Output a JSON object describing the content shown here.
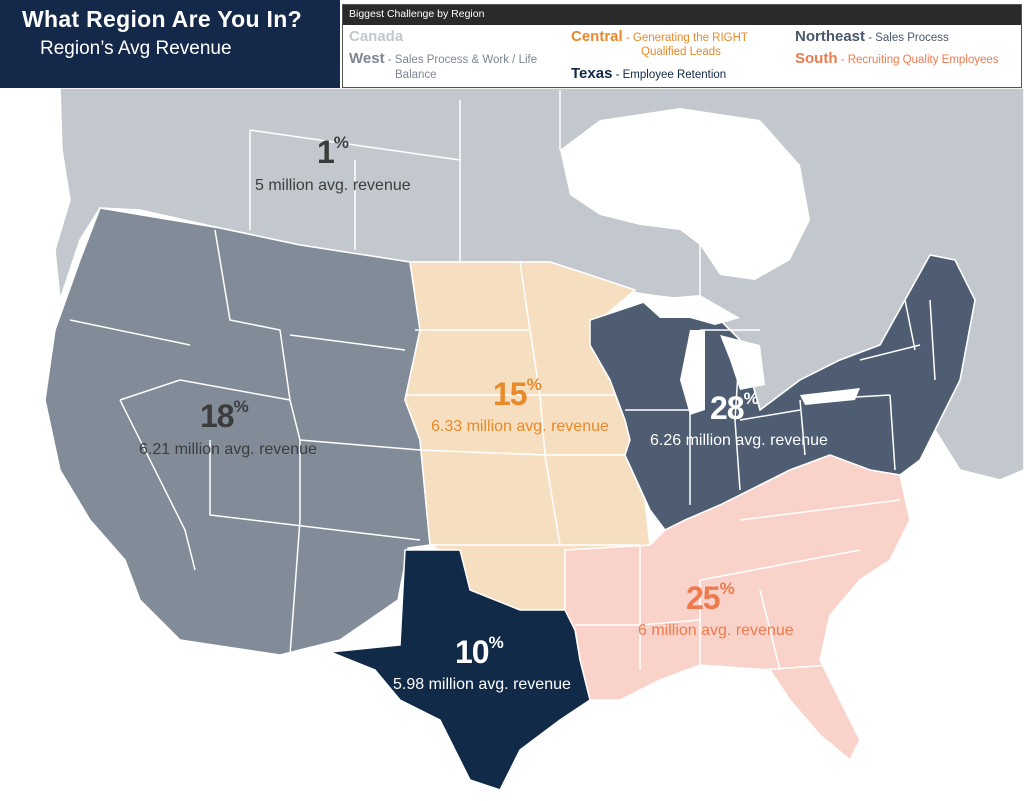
{
  "header": {
    "title": "What Region Are You In?",
    "subtitle": "Region’s Avg Revenue"
  },
  "legend": {
    "heading": "Biggest Challenge by Region",
    "entries": {
      "canada": {
        "region": "Canada",
        "challenge": ""
      },
      "west": {
        "region": "West",
        "challenge": " - Sales Process & Work / Life",
        "challenge_line2": "Balance"
      },
      "central": {
        "region": "Central",
        "challenge": " - Generating the RIGHT",
        "challenge_line2": "Qualified Leads"
      },
      "texas": {
        "region": "Texas",
        "challenge": " - Employee Retention"
      },
      "northeast": {
        "region": "Northeast",
        "challenge": " - Sales Process"
      },
      "south": {
        "region": "South",
        "challenge": " - Recruiting Quality Employees"
      }
    }
  },
  "regions": {
    "canada": {
      "percent": "1",
      "percent_sign": "%",
      "revenue": "5 million avg. revenue",
      "share_percent": 1
    },
    "west": {
      "percent": "18",
      "percent_sign": "%",
      "revenue": "6.21 million avg. revenue",
      "share_percent": 18
    },
    "central": {
      "percent": "15",
      "percent_sign": "%",
      "revenue": "6.33 million avg. revenue",
      "share_percent": 15
    },
    "northeast": {
      "percent": "28",
      "percent_sign": "%",
      "revenue": "6.26 million avg. revenue",
      "share_percent": 28
    },
    "south": {
      "percent": "25",
      "percent_sign": "%",
      "revenue": "6 million avg. revenue",
      "share_percent": 25
    },
    "texas": {
      "percent": "10",
      "percent_sign": "%",
      "revenue": "5.98 million avg. revenue",
      "share_percent": 10
    }
  },
  "colors": {
    "title_bg": "#14294a",
    "canada": "#c3c8cf",
    "canada_text": "#c3c8cf",
    "west": "#828c99",
    "west_text": "#7c8694",
    "central": "#f6dfc0",
    "central_text": "#e8892a",
    "northeast": "#4e5d72",
    "northeast_text": "#4a586c",
    "south": "#f9d3c9",
    "south_text": "#ef7a4e",
    "texas": "#112a47",
    "texas_text": "#112a47",
    "label_dark": "#3c3c3c",
    "label_light": "#ffffff"
  }
}
